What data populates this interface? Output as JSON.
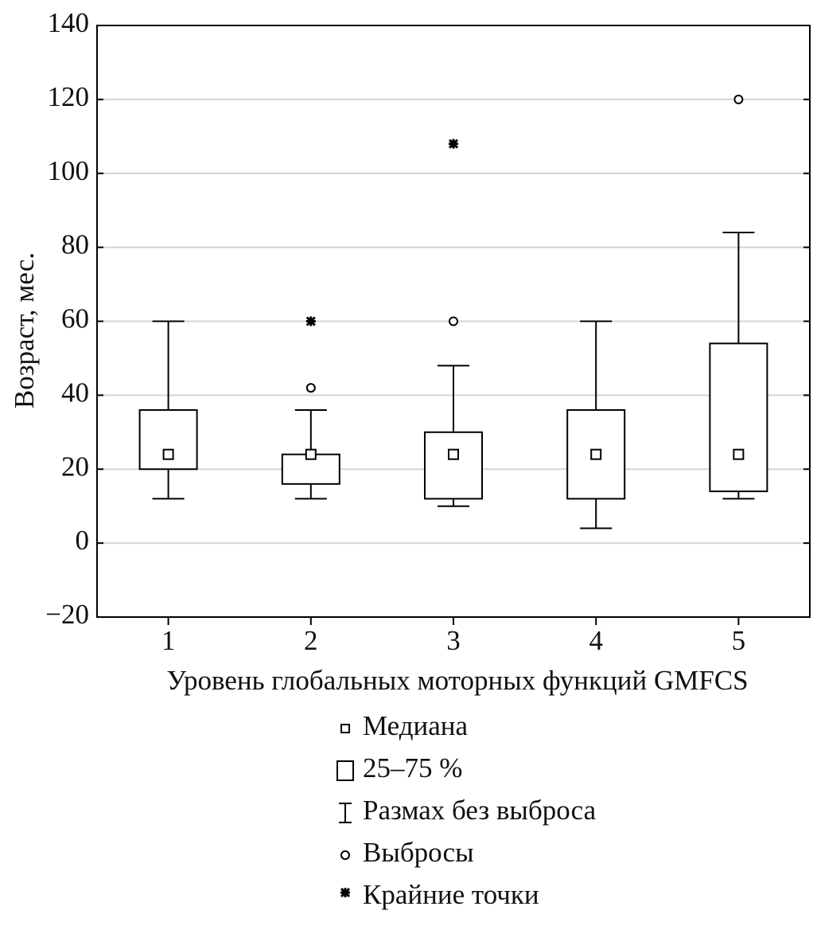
{
  "chart_data": {
    "type": "box",
    "y_label": "Возраст, мес.",
    "x_label": "Уровень глобальных моторных функций GMFCS",
    "categories": [
      "1",
      "2",
      "3",
      "4",
      "5"
    ],
    "boxes": [
      {
        "median": 24,
        "q1": 20,
        "q3": 36,
        "whisker_low": 12,
        "whisker_high": 60,
        "outliers": [],
        "extremes": []
      },
      {
        "median": 24,
        "q1": 16,
        "q3": 24,
        "whisker_low": 12,
        "whisker_high": 36,
        "outliers": [
          42
        ],
        "extremes": [
          60
        ]
      },
      {
        "median": 24,
        "q1": 12,
        "q3": 30,
        "whisker_low": 10,
        "whisker_high": 48,
        "outliers": [
          60
        ],
        "extremes": [
          108
        ]
      },
      {
        "median": 24,
        "q1": 12,
        "q3": 36,
        "whisker_low": 4,
        "whisker_high": 60,
        "outliers": [],
        "extremes": []
      },
      {
        "median": 24,
        "q1": 14,
        "q3": 54,
        "whisker_low": 12,
        "whisker_high": 84,
        "outliers": [
          120
        ],
        "extremes": []
      }
    ],
    "ylim": [
      -20,
      140
    ],
    "yticks": [
      {
        "value": -20,
        "label": "−20"
      },
      0,
      20,
      40,
      60,
      80,
      100,
      120,
      140
    ],
    "grid": true,
    "color": "#000000",
    "legend": [
      "Медиана",
      "25–75 %",
      "Размах без выброса",
      "Выбросы",
      "Крайние точки"
    ]
  }
}
